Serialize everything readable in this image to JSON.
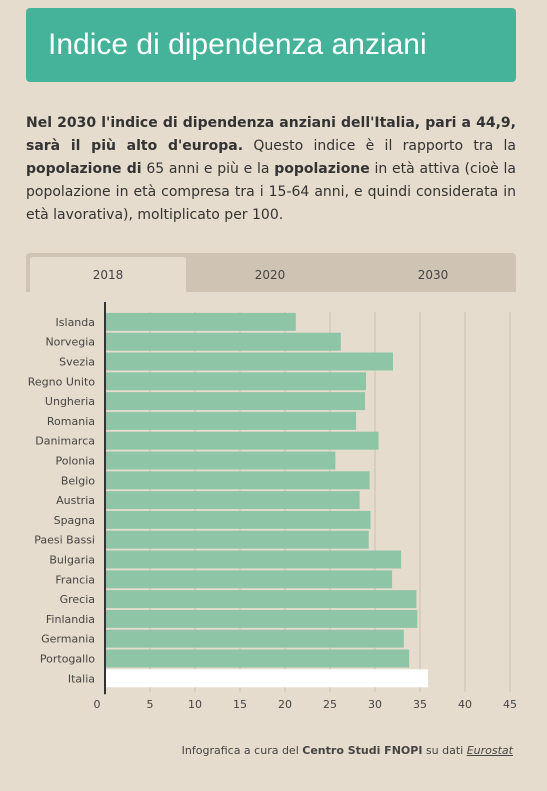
{
  "header": {
    "title": "Indice di dipendenza anziani"
  },
  "description": {
    "p1": "Nel 2030 l'indice di dipendenza anziani dell'Italia, pari a 44,9, sarà il più alto d'europa.",
    "p2": " Questo indice è il rapporto tra la ",
    "p3": "popolazione di",
    "p4": " 65 anni e più e la ",
    "p5": "popolazione",
    "p6": " in età attiva (cioè la popolazione in età compresa tra i 15-64 anni, e quindi considerata in età lavorativa), moltiplicato per 100."
  },
  "tabs": [
    {
      "label": "2018",
      "active": true
    },
    {
      "label": "2020",
      "active": false
    },
    {
      "label": "2030",
      "active": false
    }
  ],
  "colors": {
    "banner": "#44b39a",
    "bar": "#8fc5a7",
    "highlight_bar": "#ffffff",
    "background": "#e6dccd",
    "tabbar": "#cfc4b4"
  },
  "chart_data": {
    "type": "bar",
    "orientation": "horizontal",
    "categories": [
      "Islanda",
      "Norvegia",
      "Svezia",
      "Regno Unito",
      "Ungheria",
      "Romania",
      "Danimarca",
      "Polonia",
      "Belgio",
      "Austria",
      "Spagna",
      "Paesi Bassi",
      "Bulgaria",
      "Francia",
      "Grecia",
      "Finlandia",
      "Germania",
      "Portogallo",
      "Italia"
    ],
    "values": [
      21.2,
      26.2,
      32.0,
      29.0,
      28.9,
      27.9,
      30.4,
      25.6,
      29.4,
      28.3,
      29.5,
      29.3,
      32.9,
      31.9,
      34.6,
      34.7,
      33.2,
      33.8,
      35.9
    ],
    "highlight": "Italia",
    "xlim": [
      0,
      45
    ],
    "xticks": [
      0,
      5,
      10,
      15,
      20,
      25,
      30,
      35,
      40,
      45
    ],
    "grid": true
  },
  "credit": {
    "prefix": "Infografica a cura del ",
    "org": "Centro Studi FNOPI",
    "middle": " su dati ",
    "source": "Eurostat"
  }
}
